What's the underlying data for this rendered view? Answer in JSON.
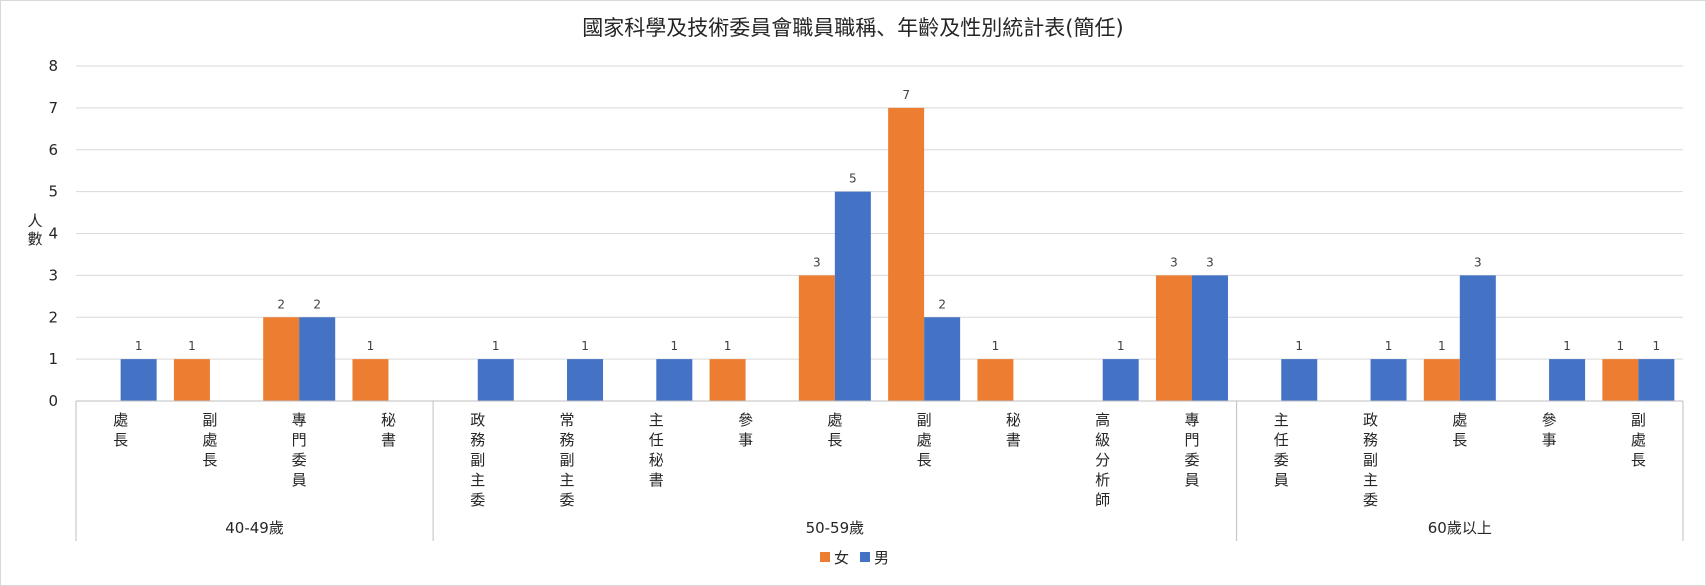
{
  "chart_data": {
    "type": "bar",
    "title": "國家科學及技術委員會職員職稱、年齡及性別統計表(簡任)",
    "ylabel": "人數",
    "ylim": [
      0,
      8
    ],
    "yticks": [
      "0",
      "1",
      "2",
      "3",
      "4",
      "5",
      "6",
      "7",
      "8"
    ],
    "grid": true,
    "legend_position": "bottom-center",
    "groups": [
      {
        "label": "40-49歲",
        "categories": [
          "處長",
          "副處長",
          "專門委員",
          "秘書"
        ]
      },
      {
        "label": "50-59歲",
        "categories": [
          "政務副主委",
          "常務副主委",
          "主任秘書",
          "參事",
          "處長",
          "副處長",
          "秘書",
          "高級分析師",
          "專門委員"
        ]
      },
      {
        "label": "60歲以上",
        "categories": [
          "主任委員",
          "政務副主委",
          "處長",
          "參事",
          "副處長"
        ]
      }
    ],
    "series": [
      {
        "name": "女",
        "color": "#ED7D31",
        "values": [
          null,
          1,
          2,
          1,
          null,
          null,
          null,
          1,
          3,
          7,
          1,
          null,
          3,
          null,
          null,
          1,
          null,
          1
        ]
      },
      {
        "name": "男",
        "color": "#4472C4",
        "values": [
          1,
          null,
          2,
          null,
          1,
          1,
          1,
          null,
          5,
          2,
          null,
          1,
          3,
          1,
          1,
          3,
          1,
          1
        ]
      }
    ]
  }
}
